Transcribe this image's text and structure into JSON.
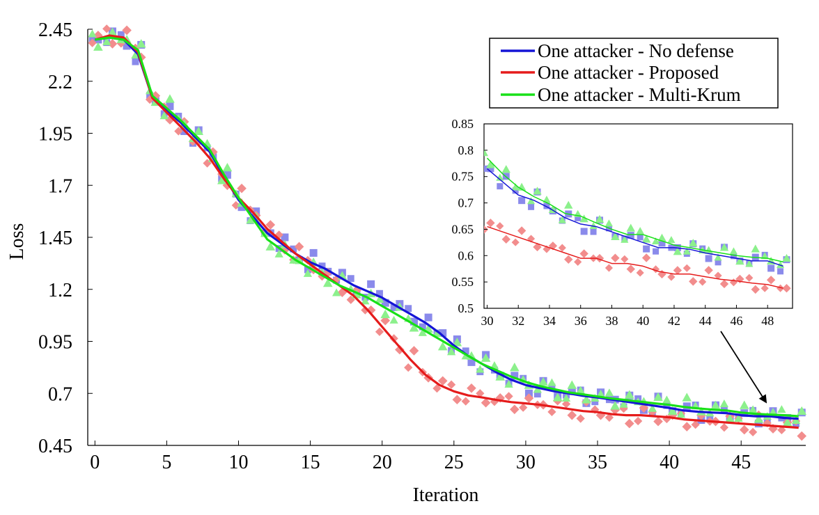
{
  "chart_data": [
    {
      "type": "line",
      "title": "",
      "xlabel": "Iteration",
      "ylabel": "Loss",
      "xlim": [
        -0.5,
        49.5
      ],
      "ylim": [
        0.45,
        2.45
      ],
      "x_ticks": [
        0,
        5,
        10,
        15,
        20,
        25,
        30,
        35,
        40,
        45
      ],
      "y_ticks": [
        0.45,
        0.7,
        0.95,
        1.2,
        1.45,
        1.7,
        1.95,
        2.2,
        2.45
      ],
      "legend_position": "top-right",
      "series": [
        {
          "name": "One attacker - No defense",
          "color": "#1515d6",
          "marker": "square",
          "values": [
            2.4,
            2.41,
            2.4,
            2.33,
            2.12,
            2.06,
            2.0,
            1.93,
            1.86,
            1.74,
            1.63,
            1.55,
            1.47,
            1.42,
            1.37,
            1.33,
            1.3,
            1.26,
            1.22,
            1.19,
            1.16,
            1.12,
            1.08,
            1.04,
            0.99,
            0.93,
            0.88,
            0.84,
            0.8,
            0.765,
            0.74,
            0.725,
            0.71,
            0.7,
            0.688,
            0.68,
            0.67,
            0.66,
            0.65,
            0.64,
            0.63,
            0.618,
            0.612,
            0.608,
            0.605,
            0.595,
            0.59,
            0.59,
            0.582,
            0.578
          ]
        },
        {
          "name": "One attacker - Proposed",
          "color": "#e51b1b",
          "marker": "diamond",
          "values": [
            2.4,
            2.42,
            2.41,
            2.34,
            2.12,
            2.05,
            1.98,
            1.91,
            1.83,
            1.73,
            1.64,
            1.57,
            1.49,
            1.43,
            1.37,
            1.32,
            1.27,
            1.22,
            1.17,
            1.1,
            1.02,
            0.94,
            0.86,
            0.79,
            0.74,
            0.71,
            0.69,
            0.68,
            0.668,
            0.658,
            0.652,
            0.645,
            0.635,
            0.625,
            0.615,
            0.61,
            0.6,
            0.595,
            0.595,
            0.59,
            0.585,
            0.575,
            0.57,
            0.565,
            0.56,
            0.555,
            0.55,
            0.545,
            0.54,
            0.535
          ]
        },
        {
          "name": "One attacker - Multi-Krum",
          "color": "#18e018",
          "marker": "triangle",
          "values": [
            2.4,
            2.41,
            2.4,
            2.35,
            2.13,
            2.07,
            2.01,
            1.94,
            1.87,
            1.75,
            1.64,
            1.54,
            1.44,
            1.39,
            1.34,
            1.3,
            1.26,
            1.22,
            1.19,
            1.16,
            1.12,
            1.08,
            1.04,
            1.0,
            0.96,
            0.92,
            0.88,
            0.84,
            0.81,
            0.78,
            0.755,
            0.735,
            0.72,
            0.705,
            0.695,
            0.685,
            0.675,
            0.668,
            0.66,
            0.652,
            0.645,
            0.635,
            0.628,
            0.622,
            0.618,
            0.608,
            0.602,
            0.598,
            0.595,
            0.59
          ]
        }
      ]
    },
    {
      "type": "line",
      "title": "",
      "xlim": [
        29.8,
        49.6
      ],
      "ylim": [
        0.5,
        0.85
      ],
      "x_ticks": [
        30,
        32,
        34,
        36,
        38,
        40,
        42,
        44,
        46,
        48
      ],
      "y_ticks": [
        0.5,
        0.55,
        0.6,
        0.65,
        0.7,
        0.75,
        0.8,
        0.85
      ],
      "series": [
        {
          "name": "One attacker - No defense",
          "color": "#1515d6",
          "x": [
            30,
            31,
            32,
            33,
            34,
            35,
            36,
            37,
            38,
            39,
            40,
            41,
            42,
            43,
            44,
            45,
            46,
            47,
            48,
            49
          ],
          "values": [
            0.765,
            0.74,
            0.715,
            0.705,
            0.69,
            0.672,
            0.66,
            0.655,
            0.645,
            0.635,
            0.625,
            0.615,
            0.615,
            0.612,
            0.605,
            0.6,
            0.595,
            0.59,
            0.59,
            0.58
          ]
        },
        {
          "name": "One attacker - Proposed",
          "color": "#e51b1b",
          "x": [
            30,
            31,
            32,
            33,
            34,
            35,
            36,
            37,
            38,
            39,
            40,
            41,
            42,
            43,
            44,
            45,
            46,
            47,
            48,
            49
          ],
          "values": [
            0.655,
            0.645,
            0.635,
            0.625,
            0.615,
            0.605,
            0.595,
            0.595,
            0.585,
            0.585,
            0.58,
            0.57,
            0.565,
            0.565,
            0.56,
            0.555,
            0.552,
            0.548,
            0.545,
            0.538
          ]
        },
        {
          "name": "One attacker - Multi-Krum",
          "color": "#18e018",
          "x": [
            30,
            31,
            32,
            33,
            34,
            35,
            36,
            37,
            38,
            39,
            40,
            41,
            42,
            43,
            44,
            45,
            46,
            47,
            48,
            49
          ],
          "values": [
            0.785,
            0.755,
            0.73,
            0.712,
            0.698,
            0.68,
            0.675,
            0.662,
            0.65,
            0.64,
            0.64,
            0.63,
            0.62,
            0.615,
            0.61,
            0.605,
            0.6,
            0.597,
            0.595,
            0.588
          ]
        }
      ]
    }
  ]
}
